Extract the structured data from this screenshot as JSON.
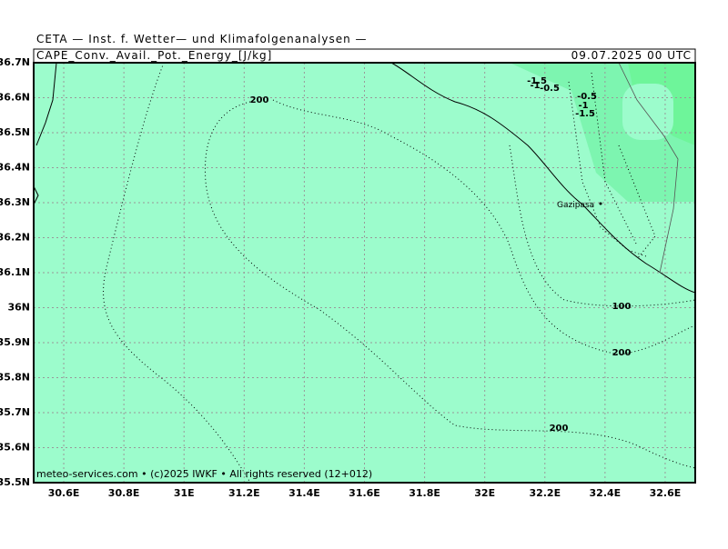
{
  "header": {
    "source": "CETA — Inst. f. Wetter— und Klimafolgenanalysen —",
    "field": "CAPE_Conv._Avail._Pot._Energy_[J/kg]",
    "time": "09.07.2025 00 UTC"
  },
  "map": {
    "xlim": [
      30.5,
      32.7
    ],
    "ylim": [
      35.5,
      36.7
    ],
    "lon_ticks": [
      {
        "value": 30.6,
        "label": "30.6E"
      },
      {
        "value": 30.8,
        "label": "30.8E"
      },
      {
        "value": 31,
        "label": "31E"
      },
      {
        "value": 31.2,
        "label": "31.2E"
      },
      {
        "value": 31.4,
        "label": "31.4E"
      },
      {
        "value": 31.6,
        "label": "31.6E"
      },
      {
        "value": 31.8,
        "label": "31.8E"
      },
      {
        "value": 32,
        "label": "32E"
      },
      {
        "value": 32.2,
        "label": "32.2E"
      },
      {
        "value": 32.4,
        "label": "32.4E"
      },
      {
        "value": 32.6,
        "label": "32.6E"
      }
    ],
    "lat_ticks": [
      {
        "value": 36.7,
        "label": "36.7N"
      },
      {
        "value": 36.6,
        "label": "36.6N"
      },
      {
        "value": 36.5,
        "label": "36.5N"
      },
      {
        "value": 36.4,
        "label": "36.4N"
      },
      {
        "value": 36.3,
        "label": "36.3N"
      },
      {
        "value": 36.2,
        "label": "36.2N"
      },
      {
        "value": 36.1,
        "label": "36.1N"
      },
      {
        "value": 36,
        "label": "36N"
      },
      {
        "value": 35.9,
        "label": "35.9N"
      },
      {
        "value": 35.8,
        "label": "35.8N"
      },
      {
        "value": 35.7,
        "label": "35.7N"
      },
      {
        "value": 35.6,
        "label": "35.6N"
      },
      {
        "value": 35.5,
        "label": "35.5N"
      }
    ],
    "contour_labels": [
      "200",
      "100",
      "200",
      "200",
      "-1.5",
      "-1",
      "-0.5",
      "-0.5",
      "-1",
      "-1.5"
    ],
    "place": "Gazipasa"
  },
  "footer": "meteo-services.com • (c)2025 IWKF • All rights reserved (12+012)"
}
